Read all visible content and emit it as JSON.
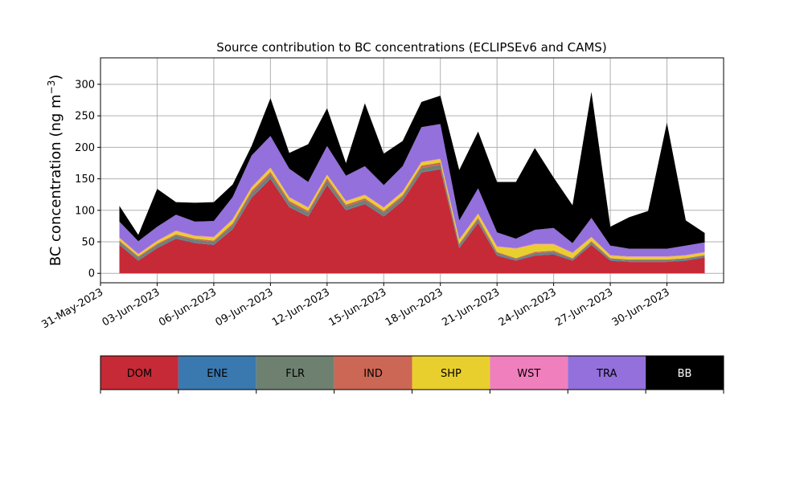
{
  "chart_data": {
    "type": "area",
    "stacked": true,
    "title": "Source contribution to BC concentrations (ECLIPSEv6 and CAMS)",
    "xlabel": "",
    "ylabel": "BC concentration (ng m",
    "ylabel_sup": "−3",
    "ylabel_close": ")",
    "ylim": [
      -15,
      342
    ],
    "xlim_days": [
      "2023-05-31",
      "2023-07-03"
    ],
    "grid": true,
    "legend_placement": "below",
    "y_ticks": [
      0,
      50,
      100,
      150,
      200,
      250,
      300
    ],
    "x_ticks": [
      {
        "date": "2023-05-31",
        "label": "31-May-2023"
      },
      {
        "date": "2023-06-03",
        "label": "03-Jun-2023"
      },
      {
        "date": "2023-06-06",
        "label": "06-Jun-2023"
      },
      {
        "date": "2023-06-09",
        "label": "09-Jun-2023"
      },
      {
        "date": "2023-06-12",
        "label": "12-Jun-2023"
      },
      {
        "date": "2023-06-15",
        "label": "15-Jun-2023"
      },
      {
        "date": "2023-06-18",
        "label": "18-Jun-2023"
      },
      {
        "date": "2023-06-21",
        "label": "21-Jun-2023"
      },
      {
        "date": "2023-06-24",
        "label": "24-Jun-2023"
      },
      {
        "date": "2023-06-27",
        "label": "27-Jun-2023"
      },
      {
        "date": "2023-06-30",
        "label": "30-Jun-2023"
      }
    ],
    "x": [
      "2023-06-01",
      "2023-06-02",
      "2023-06-03",
      "2023-06-04",
      "2023-06-05",
      "2023-06-06",
      "2023-06-07",
      "2023-06-08",
      "2023-06-09",
      "2023-06-10",
      "2023-06-11",
      "2023-06-12",
      "2023-06-13",
      "2023-06-14",
      "2023-06-15",
      "2023-06-16",
      "2023-06-17",
      "2023-06-18",
      "2023-06-19",
      "2023-06-20",
      "2023-06-21",
      "2023-06-22",
      "2023-06-23",
      "2023-06-24",
      "2023-06-25",
      "2023-06-26",
      "2023-06-27",
      "2023-06-28",
      "2023-06-29",
      "2023-06-30",
      "2023-07-01",
      "2023-07-02"
    ],
    "series": [
      {
        "name": "DOM",
        "color": "#c62a36",
        "values": [
          45,
          20,
          40,
          55,
          48,
          45,
          70,
          120,
          150,
          105,
          90,
          140,
          100,
          110,
          90,
          115,
          160,
          165,
          40,
          80,
          28,
          20,
          28,
          30,
          20,
          45,
          20,
          18,
          18,
          18,
          20,
          25
        ]
      },
      {
        "name": "ENE",
        "color": "#3a78b0",
        "values": [
          1,
          1,
          1,
          1,
          1,
          1,
          1,
          1,
          1,
          1,
          1,
          1,
          1,
          1,
          1,
          1,
          1,
          1,
          1,
          1,
          1,
          1,
          1,
          1,
          1,
          1,
          1,
          1,
          1,
          1,
          1,
          1
        ]
      },
      {
        "name": "FLR",
        "color": "#6e8070",
        "values": [
          4,
          4,
          4,
          4,
          4,
          4,
          5,
          6,
          6,
          6,
          5,
          6,
          5,
          5,
          5,
          5,
          6,
          6,
          4,
          4,
          3,
          2,
          3,
          3,
          2,
          3,
          2,
          2,
          2,
          2,
          2,
          2
        ]
      },
      {
        "name": "IND",
        "color": "#cc6655",
        "values": [
          2,
          2,
          2,
          2,
          2,
          2,
          3,
          4,
          4,
          3,
          3,
          4,
          3,
          3,
          3,
          3,
          4,
          4,
          2,
          3,
          2,
          1,
          2,
          2,
          1,
          2,
          1,
          1,
          1,
          1,
          1,
          1
        ]
      },
      {
        "name": "SHP",
        "color": "#e8cf2e",
        "values": [
          4,
          3,
          4,
          5,
          4,
          5,
          6,
          5,
          6,
          5,
          5,
          5,
          5,
          5,
          5,
          5,
          5,
          5,
          6,
          6,
          8,
          15,
          12,
          10,
          8,
          6,
          4,
          4,
          4,
          4,
          4,
          4
        ]
      },
      {
        "name": "WST",
        "color": "#f07fbd",
        "values": [
          1,
          1,
          1,
          1,
          1,
          1,
          1,
          1,
          1,
          1,
          1,
          1,
          1,
          1,
          1,
          1,
          1,
          1,
          1,
          1,
          1,
          1,
          1,
          1,
          1,
          1,
          1,
          1,
          1,
          1,
          1,
          1
        ]
      },
      {
        "name": "TRA",
        "color": "#9370db",
        "values": [
          25,
          20,
          22,
          25,
          22,
          25,
          35,
          50,
          50,
          45,
          40,
          45,
          40,
          45,
          35,
          40,
          55,
          55,
          30,
          40,
          22,
          15,
          22,
          25,
          15,
          30,
          15,
          12,
          12,
          12,
          15,
          15
        ]
      },
      {
        "name": "BB",
        "color": "#000000",
        "values": [
          25,
          10,
          60,
          20,
          30,
          30,
          20,
          15,
          60,
          25,
          60,
          60,
          20,
          100,
          50,
          40,
          40,
          45,
          80,
          90,
          80,
          90,
          130,
          80,
          60,
          200,
          30,
          50,
          60,
          200,
          40,
          15
        ]
      }
    ]
  }
}
